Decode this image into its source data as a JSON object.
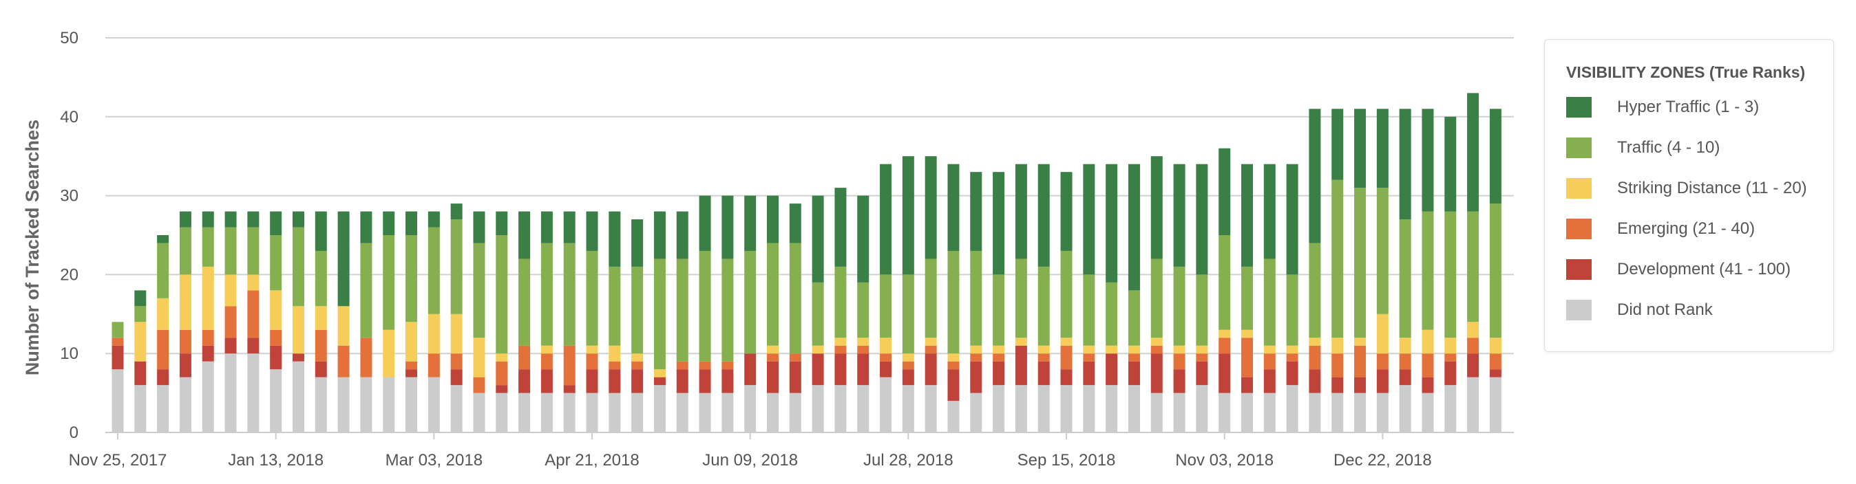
{
  "chart_data": {
    "type": "bar",
    "stacked": true,
    "title": "",
    "ylabel": "Number of Tracked Searches",
    "xlabel": "",
    "ylim": [
      0,
      50
    ],
    "yticks": [
      0,
      10,
      20,
      30,
      40,
      50
    ],
    "grid": true,
    "legend_position": "right",
    "legend_title": "VISIBILITY ZONES (True Ranks)",
    "x_tick_labels": [
      "Nov 25, 2017",
      "Jan 13, 2018",
      "Mar 03, 2018",
      "Apr 21, 2018",
      "Jun 09, 2018",
      "Jul 28, 2018",
      "Sep 15, 2018",
      "Nov 03, 2018",
      "Dec 22, 2018"
    ],
    "x_tick_positions": [
      0,
      7,
      14,
      21,
      28,
      35,
      42,
      49,
      56
    ],
    "bar_count": 62,
    "series": [
      {
        "name": "Did not Rank",
        "color": "#cccccc",
        "values": [
          8,
          6,
          6,
          7,
          9,
          10,
          10,
          8,
          9,
          7,
          7,
          7,
          7,
          7,
          7,
          6,
          5,
          5,
          5,
          5,
          5,
          5,
          5,
          5,
          6,
          5,
          5,
          5,
          6,
          5,
          5,
          6,
          6,
          6,
          7,
          6,
          6,
          4,
          5,
          6,
          6,
          6,
          6,
          6,
          6,
          6,
          5,
          5,
          6,
          5,
          5,
          5,
          6,
          5,
          5,
          5,
          5,
          6,
          5,
          6,
          7,
          7
        ]
      },
      {
        "name": "Development (41 - 100)",
        "color": "#c0433a",
        "values": [
          3,
          3,
          2,
          3,
          2,
          2,
          2,
          3,
          1,
          2,
          0,
          0,
          0,
          1,
          0,
          2,
          0,
          1,
          3,
          3,
          1,
          3,
          3,
          3,
          1,
          3,
          3,
          3,
          4,
          4,
          4,
          4,
          4,
          4,
          2,
          2,
          4,
          4,
          4,
          3,
          5,
          3,
          2,
          3,
          4,
          3,
          5,
          3,
          3,
          5,
          2,
          3,
          3,
          3,
          2,
          2,
          3,
          2,
          2,
          3,
          3,
          1
        ]
      },
      {
        "name": "Emerging (21 - 40)",
        "color": "#e5713a",
        "values": [
          1,
          0,
          5,
          3,
          2,
          4,
          6,
          2,
          0,
          4,
          4,
          5,
          0,
          1,
          3,
          2,
          2,
          3,
          3,
          2,
          5,
          2,
          1,
          1,
          0,
          1,
          1,
          1,
          0,
          1,
          1,
          0,
          1,
          1,
          1,
          1,
          1,
          1,
          1,
          1,
          0,
          1,
          3,
          1,
          0,
          1,
          1,
          2,
          1,
          2,
          5,
          2,
          1,
          3,
          3,
          4,
          2,
          2,
          3,
          1,
          2,
          2
        ]
      },
      {
        "name": "Striking Distance (11 - 20)",
        "color": "#f7cd59",
        "values": [
          0,
          5,
          4,
          7,
          8,
          4,
          2,
          5,
          6,
          3,
          5,
          0,
          6,
          5,
          5,
          5,
          5,
          1,
          0,
          1,
          0,
          1,
          2,
          1,
          1,
          0,
          0,
          0,
          0,
          1,
          0,
          1,
          1,
          1,
          2,
          1,
          1,
          1,
          1,
          1,
          1,
          1,
          1,
          1,
          1,
          1,
          1,
          1,
          1,
          1,
          1,
          1,
          1,
          1,
          2,
          1,
          5,
          2,
          3,
          2,
          2,
          2
        ]
      },
      {
        "name": "Traffic (4 - 10)",
        "color": "#86b04f",
        "values": [
          2,
          2,
          7,
          6,
          5,
          6,
          6,
          7,
          10,
          7,
          0,
          12,
          12,
          11,
          11,
          12,
          12,
          15,
          11,
          13,
          13,
          12,
          10,
          11,
          14,
          13,
          14,
          13,
          13,
          13,
          14,
          8,
          9,
          7,
          8,
          10,
          10,
          13,
          12,
          9,
          10,
          10,
          11,
          9,
          8,
          7,
          10,
          10,
          9,
          12,
          8,
          11,
          9,
          12,
          20,
          19,
          16,
          15,
          15,
          16,
          14,
          17
        ]
      },
      {
        "name": "Hyper Traffic (1 - 3)",
        "color": "#3a7f45",
        "values": [
          0,
          2,
          1,
          2,
          2,
          2,
          2,
          3,
          2,
          5,
          12,
          4,
          3,
          3,
          2,
          2,
          4,
          3,
          6,
          4,
          4,
          5,
          7,
          6,
          6,
          6,
          7,
          8,
          7,
          6,
          5,
          11,
          10,
          11,
          14,
          15,
          13,
          11,
          10,
          13,
          12,
          13,
          10,
          14,
          15,
          16,
          13,
          13,
          14,
          11,
          13,
          12,
          14,
          17,
          9,
          10,
          10,
          14,
          13,
          12,
          15,
          12
        ]
      }
    ]
  }
}
